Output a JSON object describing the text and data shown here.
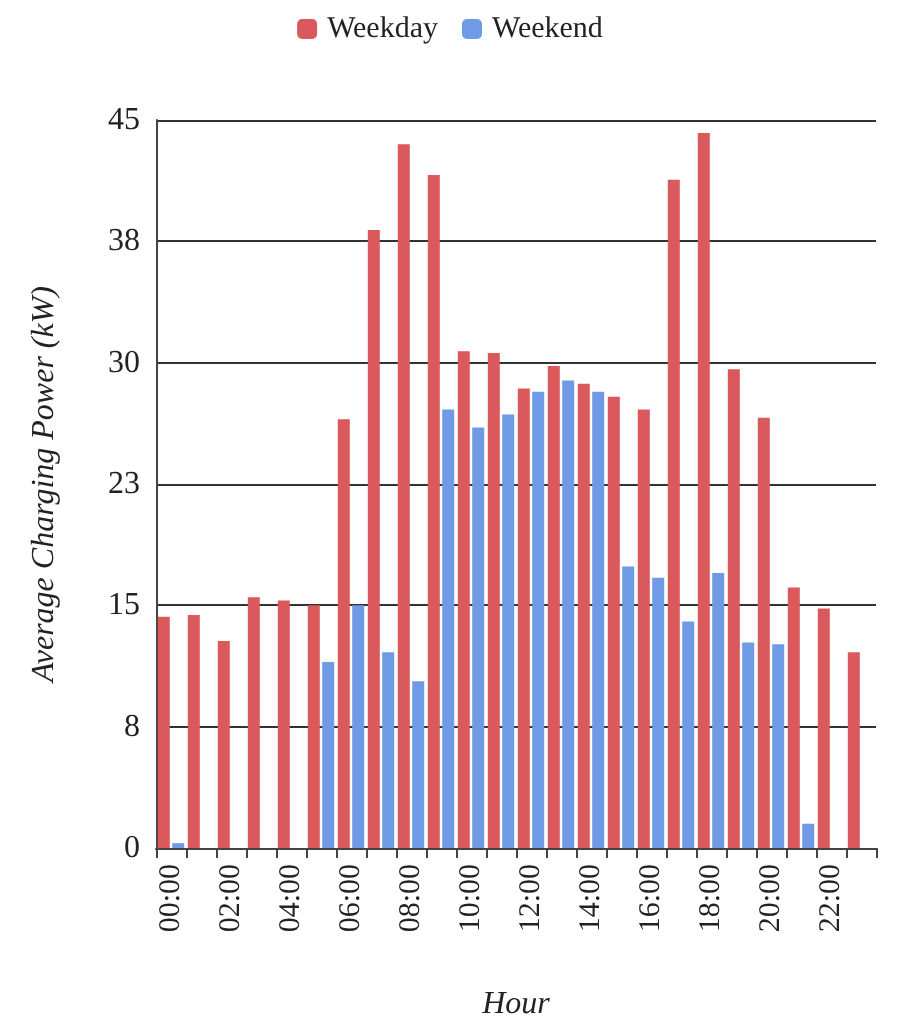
{
  "chart_data": {
    "type": "bar",
    "xlabel": "Hour",
    "ylabel": "Average Charging Power (kW)",
    "categories": [
      "00:00",
      null,
      "02:00",
      null,
      "04:00",
      null,
      "06:00",
      null,
      "08:00",
      null,
      "10:00",
      null,
      "12:00",
      null,
      "14:00",
      null,
      "16:00",
      null,
      "18:00",
      null,
      "20:00",
      null,
      "22:00",
      null
    ],
    "series": [
      {
        "name": "Weekday",
        "color": "#d9595c",
        "values": [
          14.3,
          14.4,
          12.8,
          15.5,
          15.3,
          15.0,
          26.5,
          38.2,
          43.5,
          41.6,
          30.7,
          30.6,
          28.4,
          29.8,
          28.7,
          27.9,
          27.1,
          41.3,
          44.2,
          29.6,
          26.6,
          16.1,
          14.8,
          12.1
        ]
      },
      {
        "name": "Weekend",
        "color": "#6f9be6",
        "values": [
          0.3,
          0,
          0,
          0,
          0,
          11.5,
          15.0,
          12.1,
          10.3,
          27.1,
          26.0,
          26.8,
          28.2,
          28.9,
          28.2,
          17.4,
          16.7,
          14.0,
          17.0,
          12.7,
          12.6,
          1.5,
          0,
          0
        ]
      }
    ],
    "ylim": [
      0,
      45
    ],
    "yticks": [
      0,
      {
        "value": 7.5,
        "label": "8"
      },
      15,
      {
        "value": 22.5,
        "label": "23"
      },
      30,
      {
        "value": 37.5,
        "label": "38"
      },
      45
    ],
    "grid": "y",
    "legend": "top"
  }
}
